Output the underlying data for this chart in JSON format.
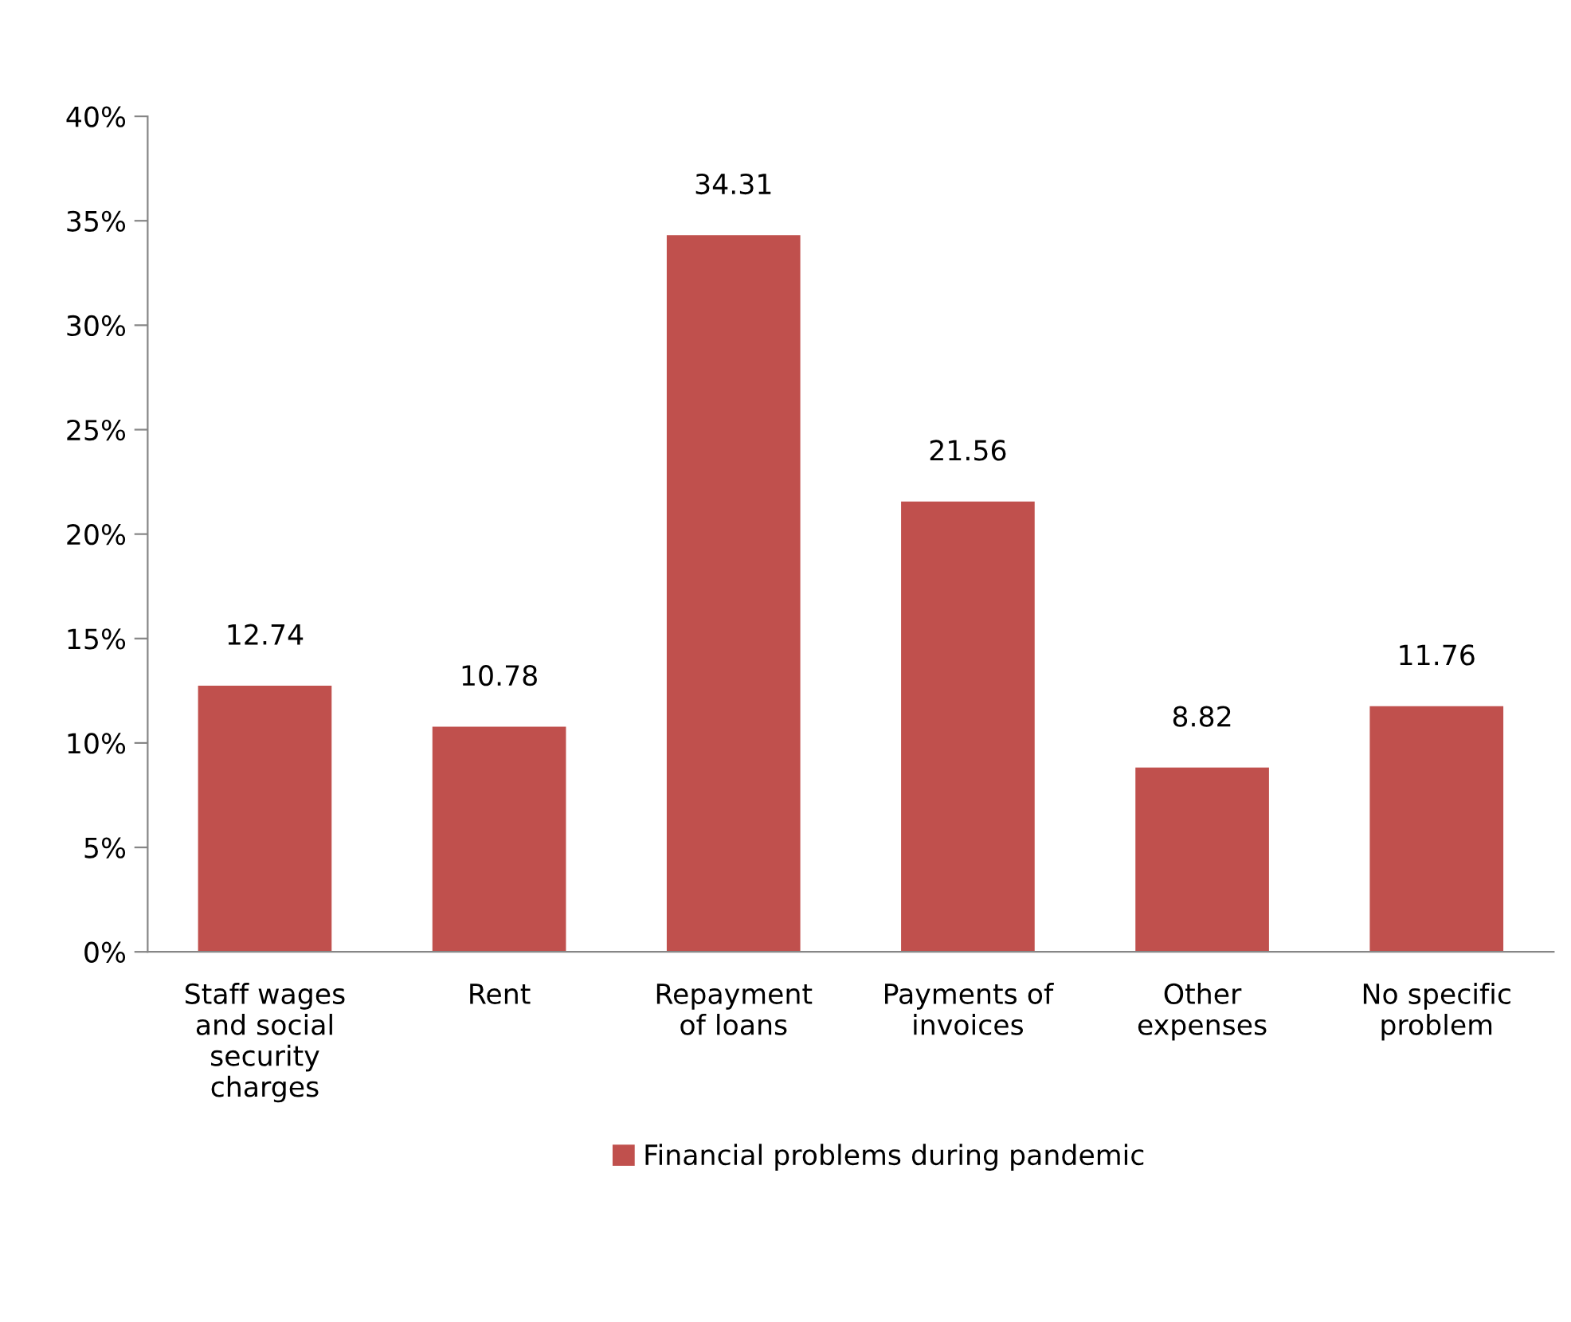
{
  "chart_data": {
    "type": "bar",
    "categories": [
      "Staff wages and social security charges",
      "Rent",
      "Repayment of loans",
      "Payments of invoices",
      "Other expenses",
      "No specific problem"
    ],
    "series": [
      {
        "name": "Financial problems during pandemic",
        "color": "#c0504d",
        "values": [
          12.74,
          10.78,
          34.31,
          21.56,
          8.82,
          11.76
        ]
      }
    ],
    "ylim": [
      0,
      40
    ],
    "yticks": [
      {
        "value": 0,
        "label": "0%"
      },
      {
        "value": 5,
        "label": "5%"
      },
      {
        "value": 10,
        "label": "10%"
      },
      {
        "value": 15,
        "label": "15%"
      },
      {
        "value": 20,
        "label": "20%"
      },
      {
        "value": 25,
        "label": "25%"
      },
      {
        "value": 30,
        "label": "30%"
      },
      {
        "value": 35,
        "label": "35%"
      },
      {
        "value": 40,
        "label": "40%"
      }
    ],
    "data_labels": true,
    "grid": false,
    "legend": "bottom"
  }
}
